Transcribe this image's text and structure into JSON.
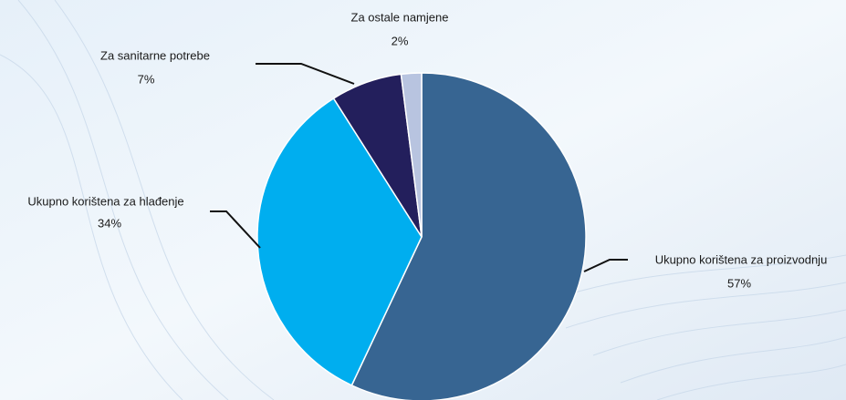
{
  "chart_data": {
    "type": "pie",
    "categories": [
      "Ukupno korištena za proizvodnju",
      "Ukupno korištena za hlađenje",
      "Za sanitarne potrebe",
      "Za ostale namjene"
    ],
    "values": [
      57,
      34,
      7,
      2
    ],
    "value_labels": [
      "57%",
      "34%",
      "7%",
      "2%"
    ],
    "colors": [
      "#376592",
      "#00aeef",
      "#231f5c",
      "#b8c4e0"
    ]
  }
}
